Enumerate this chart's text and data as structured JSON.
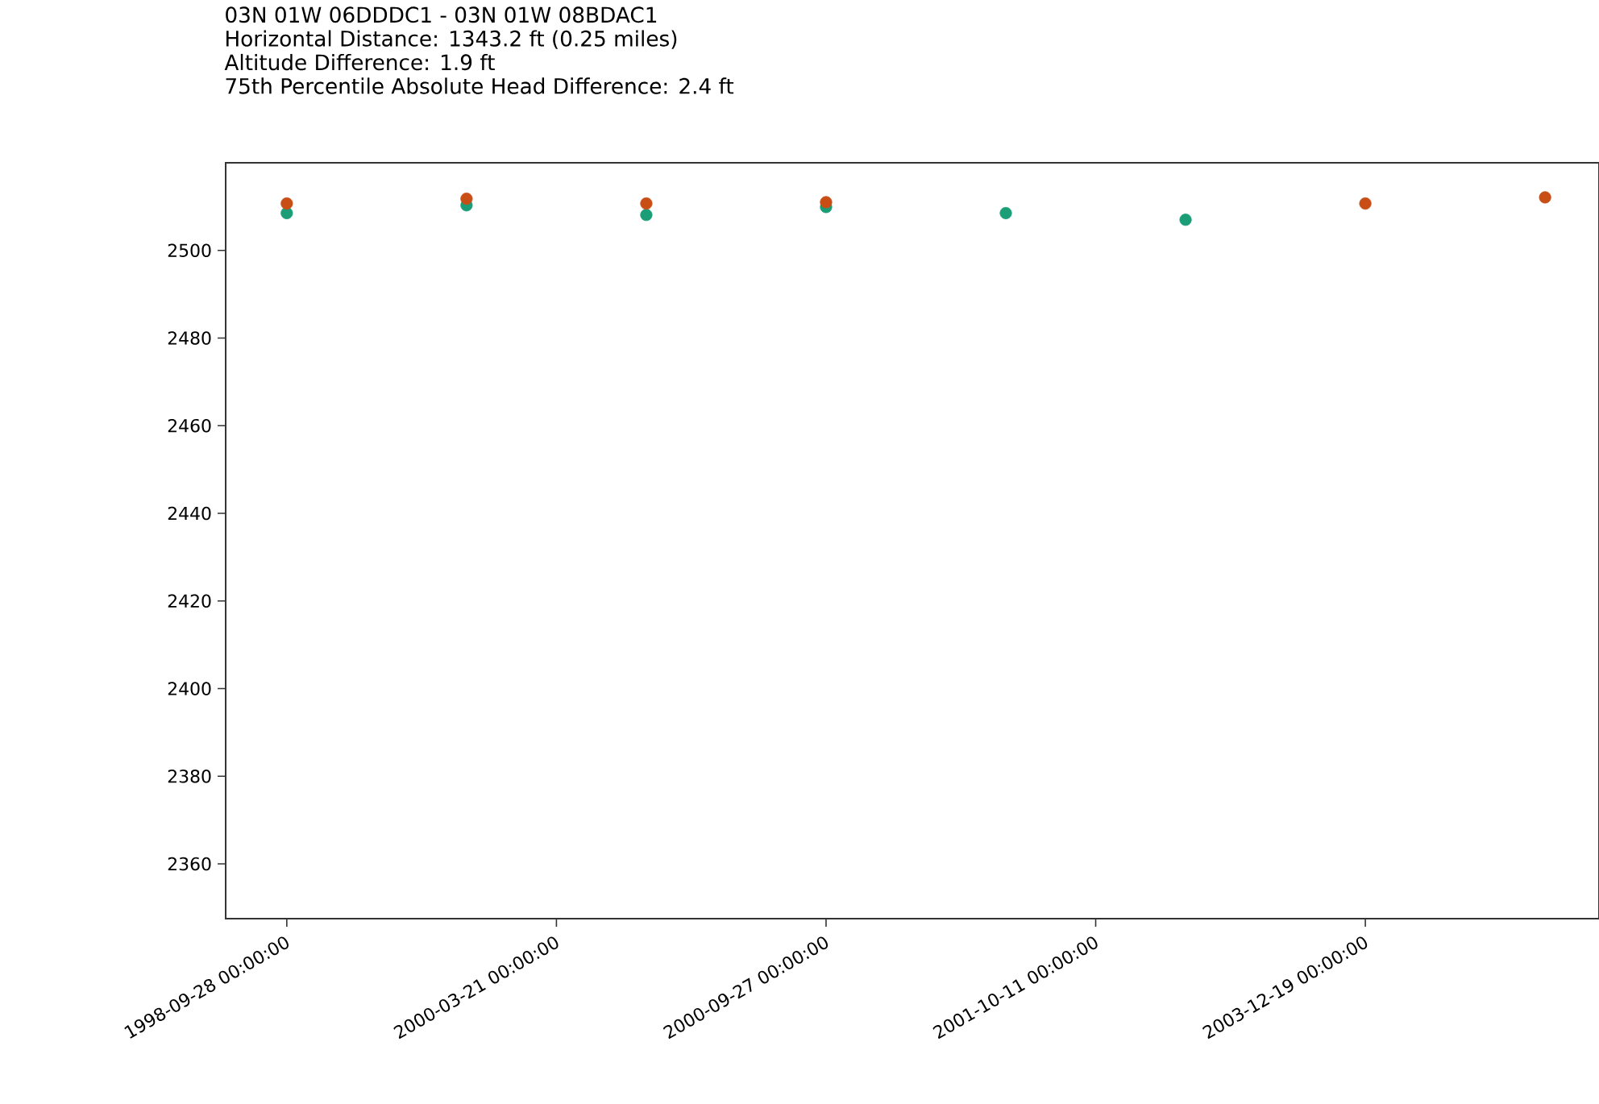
{
  "chart_data": {
    "type": "scatter",
    "title": "03N 01W 06DDDC1 - 03N 01W 08BDAC1",
    "subtitle": "Horizontal Distance: 1343.2 ft (0.25 miles)\nAltitude Difference: 1.9 ft\n75th Percentile Absolute Head Difference: 2.4 ft",
    "categories": [
      "1998-09-28 00:00:00",
      null,
      null,
      "2000-03-21 00:00:00",
      null,
      null,
      "2000-09-27 00:00:00",
      null,
      null,
      "2001-10-11 00:00:00",
      null,
      null,
      "2003-12-19 00:00:00",
      null,
      null
    ],
    "series": [
      {
        "color": "#1b9e77",
        "values": [
          2508.5,
          null,
          2510.3,
          null,
          2508.1,
          null,
          2509.9,
          null,
          2508.5,
          null,
          2507.0,
          null,
          null,
          null,
          null
        ]
      },
      {
        "color": "#c84e16",
        "values": [
          2510.7,
          null,
          2511.8,
          null,
          2510.7,
          null,
          2511.0,
          null,
          null,
          null,
          null,
          null,
          2510.7,
          null,
          2512.1
        ]
      }
    ],
    "ylim": [
      2347.5,
      2520
    ],
    "yticks": [
      2360,
      2380,
      2400,
      2420,
      2440,
      2460,
      2480,
      2500
    ],
    "grid": false
  }
}
